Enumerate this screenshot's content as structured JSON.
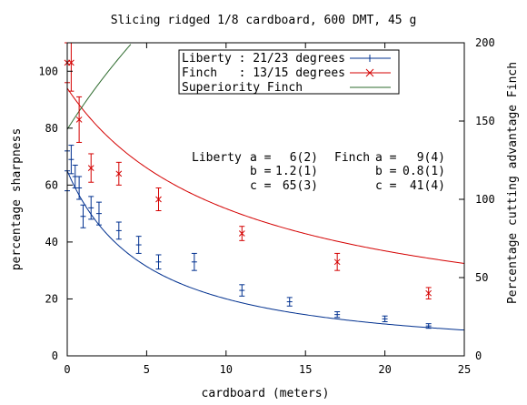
{
  "chart_data": {
    "type": "scatter",
    "title": "Slicing ridged 1/8 cardboard, 600 DMT, 45 g",
    "xlabel": "cardboard (meters)",
    "ylabel": "percentage sharpness",
    "y2label": "Percentage cutting advantage Finch",
    "xlim": [
      0,
      25
    ],
    "ylim": [
      0,
      110
    ],
    "y2lim": [
      0,
      200
    ],
    "xticks": [
      0,
      5,
      10,
      15,
      20,
      25
    ],
    "yticks": [
      0,
      20,
      40,
      60,
      80,
      100
    ],
    "y2ticks": [
      0,
      50,
      100,
      150,
      200
    ],
    "grid": false,
    "legend_position": "top-center",
    "legend": [
      {
        "label": "Liberty : 21/23 degrees",
        "color": "#00308f",
        "marker": "+"
      },
      {
        "label": "Finch   : 13/15 degrees",
        "color": "#d40000",
        "marker": "x"
      },
      {
        "label": "Superiority Finch",
        "color": "#2e6b2e",
        "marker": "none"
      }
    ],
    "fit_params": {
      "liberty": {
        "name": "Liberty",
        "a": "6(2)",
        "b": "1.2(1)",
        "c": "65(3)"
      },
      "finch": {
        "name": "Finch",
        "a": "9(4)",
        "b": "0.8(1)",
        "c": "41(4)"
      }
    },
    "series": [
      {
        "name": "Liberty : 21/23 degrees",
        "color": "#00308f",
        "marker": "+",
        "points": [
          {
            "x": 0.0,
            "y": 65,
            "err": 7
          },
          {
            "x": 0.25,
            "y": 69,
            "err": 5
          },
          {
            "x": 0.5,
            "y": 63,
            "err": 4
          },
          {
            "x": 0.75,
            "y": 59,
            "err": 4
          },
          {
            "x": 1.0,
            "y": 49,
            "err": 4
          },
          {
            "x": 1.5,
            "y": 52,
            "err": 4
          },
          {
            "x": 2.0,
            "y": 50,
            "err": 4
          },
          {
            "x": 3.25,
            "y": 44,
            "err": 3
          },
          {
            "x": 4.5,
            "y": 39,
            "err": 3
          },
          {
            "x": 5.75,
            "y": 33,
            "err": 2.5
          },
          {
            "x": 8.0,
            "y": 33,
            "err": 3
          },
          {
            "x": 11.0,
            "y": 23,
            "err": 2
          },
          {
            "x": 14.0,
            "y": 19,
            "err": 1.5
          },
          {
            "x": 17.0,
            "y": 14.5,
            "err": 1
          },
          {
            "x": 20.0,
            "y": 13,
            "err": 1
          },
          {
            "x": 22.75,
            "y": 10.5,
            "err": 0.8
          }
        ]
      },
      {
        "name": "Finch   : 13/15 degrees",
        "color": "#d40000",
        "marker": "x",
        "points": [
          {
            "x": 0.0,
            "y": 103,
            "err": 7
          },
          {
            "x": 0.25,
            "y": 103,
            "err": 10
          },
          {
            "x": 0.75,
            "y": 83,
            "err": 8
          },
          {
            "x": 1.5,
            "y": 66,
            "err": 5
          },
          {
            "x": 3.25,
            "y": 64,
            "err": 4
          },
          {
            "x": 5.75,
            "y": 55,
            "err": 4
          },
          {
            "x": 11.0,
            "y": 43,
            "err": 2.5
          },
          {
            "x": 17.0,
            "y": 33,
            "err": 3
          },
          {
            "x": 22.75,
            "y": 22,
            "err": 2
          }
        ]
      }
    ],
    "fit_curves": [
      {
        "series": "Liberty : 21/23 degrees",
        "color": "#00308f",
        "a": 6,
        "b": 1.2,
        "c": 65
      },
      {
        "series": "Finch   : 13/15 degrees",
        "color": "#d40000",
        "a": 9,
        "b": 0.8,
        "c": 41
      }
    ],
    "superiority_curve": {
      "name": "Superiority Finch",
      "color": "#2e6b2e",
      "axis": "y2"
    }
  }
}
